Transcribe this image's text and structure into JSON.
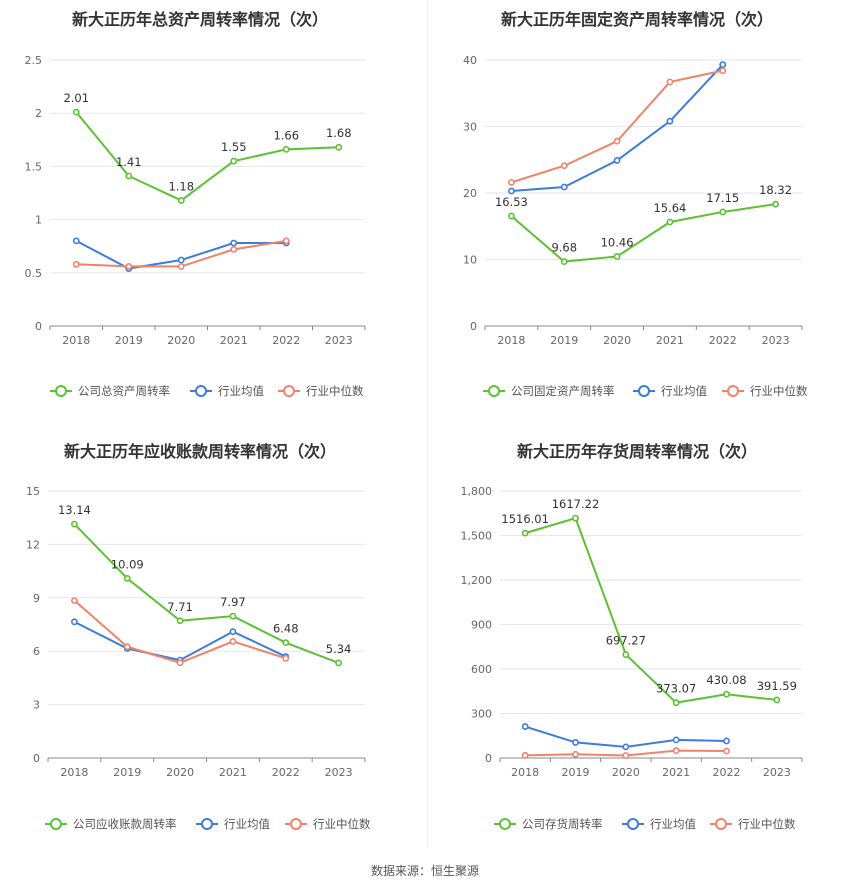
{
  "source": "数据来源：恒生聚源",
  "colors": {
    "company": "#5ac232",
    "average": "#3d7bdc",
    "median": "#f0826a"
  },
  "chart_data": [
    {
      "type": "line",
      "title": "新大正历年总资产周转率情况（次）",
      "x": [
        "2018",
        "2019",
        "2020",
        "2021",
        "2022",
        "2023"
      ],
      "ylim": [
        0,
        2.5
      ],
      "yticks": [
        "0",
        "0.5",
        "1",
        "1.5",
        "2",
        "2.5"
      ],
      "grid": true,
      "legend": "bottom",
      "series": [
        {
          "name": "公司总资产周转率",
          "values": [
            2.01,
            1.41,
            1.18,
            1.55,
            1.66,
            1.68
          ],
          "labels": [
            "2.01",
            "1.41",
            "1.18",
            "1.55",
            "1.66",
            "1.68"
          ]
        },
        {
          "name": "行业均值",
          "values": [
            0.8,
            0.54,
            0.62,
            0.78,
            0.78,
            null
          ]
        },
        {
          "name": "行业中位数",
          "values": [
            0.58,
            0.56,
            0.56,
            0.72,
            0.8,
            null
          ]
        }
      ]
    },
    {
      "type": "line",
      "title": "新大正历年固定资产周转率情况（次）",
      "x": [
        "2018",
        "2019",
        "2020",
        "2021",
        "2022",
        "2023"
      ],
      "ylim": [
        0,
        40
      ],
      "yticks": [
        "0",
        "10",
        "20",
        "30",
        "40"
      ],
      "grid": true,
      "legend": "bottom",
      "series": [
        {
          "name": "公司固定资产周转率",
          "values": [
            16.53,
            9.68,
            10.46,
            15.64,
            17.15,
            18.32
          ],
          "labels": [
            "16.53",
            "9.68",
            "10.46",
            "15.64",
            "17.15",
            "18.32"
          ]
        },
        {
          "name": "行业均值",
          "values": [
            20.3,
            20.9,
            24.9,
            30.8,
            39.3,
            null
          ]
        },
        {
          "name": "行业中位数",
          "values": [
            21.6,
            24.1,
            27.8,
            36.7,
            38.4,
            null
          ]
        }
      ]
    },
    {
      "type": "line",
      "title": "新大正历年应收账款周转率情况（次）",
      "x": [
        "2018",
        "2019",
        "2020",
        "2021",
        "2022",
        "2023"
      ],
      "ylim": [
        0,
        15
      ],
      "yticks": [
        "0",
        "3",
        "6",
        "9",
        "12",
        "15"
      ],
      "grid": true,
      "legend": "bottom",
      "series": [
        {
          "name": "公司应收账款周转率",
          "values": [
            13.14,
            10.09,
            7.71,
            7.97,
            6.48,
            5.34
          ],
          "labels": [
            "13.14",
            "10.09",
            "7.71",
            "7.97",
            "6.48",
            "5.34"
          ]
        },
        {
          "name": "行业均值",
          "values": [
            7.65,
            6.15,
            5.5,
            7.1,
            5.7,
            null
          ]
        },
        {
          "name": "行业中位数",
          "values": [
            8.85,
            6.25,
            5.35,
            6.55,
            5.6,
            null
          ]
        }
      ]
    },
    {
      "type": "line",
      "title": "新大正历年存货周转率情况（次）",
      "x": [
        "2018",
        "2019",
        "2020",
        "2021",
        "2022",
        "2023"
      ],
      "ylim": [
        0,
        1800
      ],
      "yticks": [
        "0",
        "300",
        "600",
        "900",
        "1,200",
        "1,500",
        "1,800"
      ],
      "grid": true,
      "legend": "bottom",
      "series": [
        {
          "name": "公司存货周转率",
          "values": [
            1516.01,
            1617.22,
            697.27,
            373.07,
            430.08,
            391.59
          ],
          "labels": [
            "1516.01",
            "1617.22",
            "697.27",
            "373.07",
            "430.08",
            "391.59"
          ]
        },
        {
          "name": "行业均值",
          "values": [
            212,
            105,
            75,
            122,
            115,
            null
          ]
        },
        {
          "name": "行业中位数",
          "values": [
            18,
            25,
            17,
            50,
            47,
            null
          ]
        }
      ]
    }
  ]
}
